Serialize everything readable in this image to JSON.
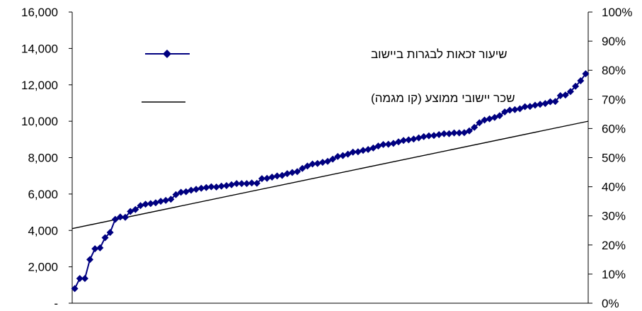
{
  "colors": {
    "series_marker": "#000080",
    "trend_line": "#000000",
    "axes": "#000000",
    "background": "#ffffff"
  },
  "chart_data": {
    "type": "line",
    "title": "",
    "xlabel": "",
    "ylabel": "",
    "grid": false,
    "legend_position": "top-right inside plot",
    "y_left": {
      "range": [
        0,
        16000
      ],
      "ticks": [
        0,
        2000,
        4000,
        6000,
        8000,
        10000,
        12000,
        14000,
        16000
      ],
      "tick_labels": [
        "-",
        "2,000",
        "4,000",
        "6,000",
        "8,000",
        "10,000",
        "12,000",
        "14,000",
        "16,000"
      ]
    },
    "y_right": {
      "range": [
        0,
        100
      ],
      "ticks": [
        0,
        10,
        20,
        30,
        40,
        50,
        60,
        70,
        80,
        90,
        100
      ],
      "tick_labels": [
        "0%",
        "10%",
        "20%",
        "30%",
        "40%",
        "50%",
        "60%",
        "70%",
        "80%",
        "90%",
        "100%"
      ]
    },
    "series": [
      {
        "name": "שיעור זכאות לבגרות ביישוב",
        "axis": "right",
        "style": "line-diamond",
        "values": [
          5,
          8.5,
          8.5,
          15,
          18.7,
          19,
          22.5,
          24.3,
          28.8,
          29.6,
          29.5,
          31.5,
          32.2,
          33.5,
          34,
          34.2,
          34.5,
          35,
          35.3,
          35.7,
          37.3,
          38.1,
          38.3,
          38.8,
          39.1,
          39.5,
          39.7,
          40,
          39.9,
          40.2,
          40.4,
          40.7,
          41.1,
          41.1,
          41.1,
          41.3,
          41.2,
          42.8,
          42.9,
          43.3,
          43.7,
          43.9,
          44.5,
          44.9,
          45.2,
          46.3,
          47.1,
          47.8,
          48,
          48.4,
          48.7,
          49.5,
          50.4,
          50.7,
          51.2,
          51.9,
          52,
          52.5,
          52.8,
          53.3,
          54,
          54.5,
          54.6,
          54.9,
          55.4,
          55.9,
          56.1,
          56.4,
          56.8,
          57.2,
          57.5,
          57.6,
          57.9,
          58.2,
          58.2,
          58.5,
          58.5,
          58.6,
          59.2,
          60.4,
          62,
          62.9,
          63.3,
          63.8,
          64.4,
          65.7,
          66.3,
          66.5,
          66.8,
          67.5,
          67.6,
          68,
          68.3,
          68.6,
          69.2,
          69.3,
          71.3,
          71.5,
          72.7,
          74.5,
          76.4,
          78.8
        ]
      },
      {
        "name": "שכר יישובי ממוצע (קו מגמה)",
        "axis": "left",
        "style": "line",
        "start": 4100,
        "end": 10000
      }
    ]
  }
}
